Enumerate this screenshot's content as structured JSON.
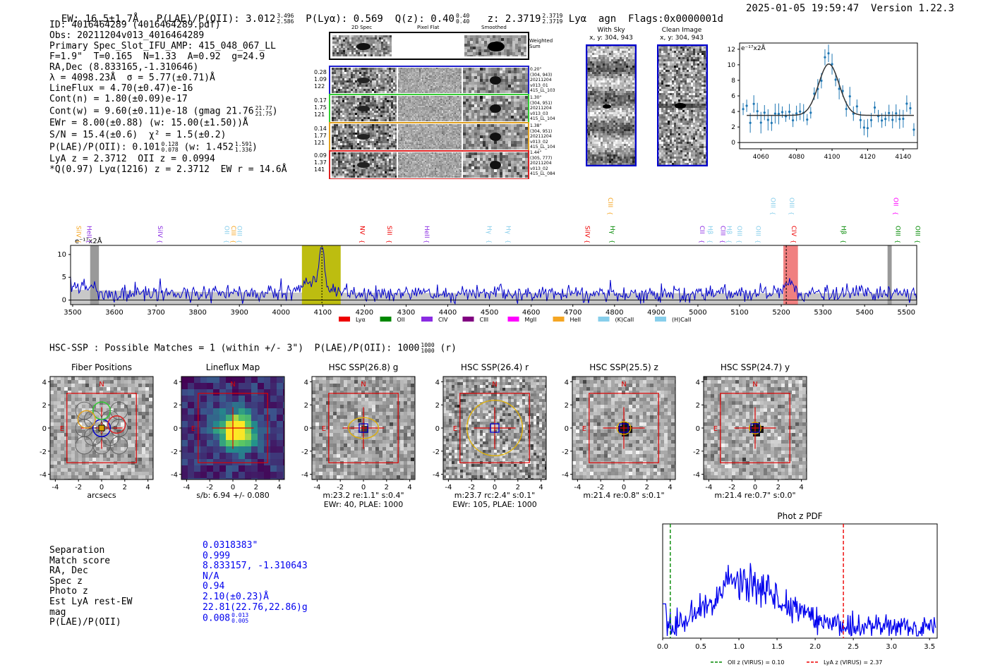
{
  "header": {
    "ew_label": "EW: 16.5±1.7Å",
    "plae_label": "P(LAE)/P(OII): 3.012",
    "plae_hi": "3.496",
    "plae_lo": "2.586",
    "plya_label": "P(Lyα): 0.569",
    "qz_label": "Q(z): 0.40",
    "qz_hi": "0.40",
    "qz_lo": "0.40",
    "z_label": "z: 2.3719",
    "z_hi": "2.3719",
    "z_lo": "2.3719",
    "tail": "Lyα  agn  Flags:0x0000001d",
    "datetime": "2025-01-05 19:59:47",
    "version": "Version 1.22.3"
  },
  "info": {
    "lines": [
      "ID: 4016464289 (4016464289.pdf)",
      "Obs: 20211204v013_4016464289",
      "Primary Spec_Slot_IFU_AMP: 415_048_067_LL",
      "F=1.9\"  T=0.165  N=1.33  A=0.92  g=24.9",
      "RA,Dec (8.833165,-1.310646)",
      "λ = 4098.23Å  σ = 5.77(±0.71)Å",
      "LineFlux = 4.70(±0.47)e-16",
      "Cont(n) = 1.80(±0.09)e-17"
    ],
    "contw": "Cont(w) = 9.60(±0.11)e-18 (gmag 21.76",
    "contw_hi": "21.77",
    "contw_lo": "21.75",
    "contw_close": ")",
    "ewr": "EWr = 8.00(±0.88) (w: 15.00(±1.50))Å",
    "sn": "S/N = 15.4(±0.6)  χ² = 1.5(±0.2)",
    "plae": "P(LAE)/P(OII): 0.101",
    "plae_hi": "0.128",
    "plae_lo": "0.078",
    "plae_w": "(w: 1.452",
    "plae_w_hi": "1.591",
    "plae_w_lo": "1.336",
    "plae_w_close": ")",
    "lyaz": "LyA z = 2.3712  OII z = 0.0994",
    "qline": "*Q(0.97) Lyα(1216) z = 2.3712  EW r = 14.6Å"
  },
  "cutouts": {
    "col_headers": [
      "2D Spec",
      "Pixel Flat",
      "Smoothed"
    ],
    "weighted_sum": "Weighted Sum",
    "rows": [
      {
        "left": [
          "0.28",
          "1.09",
          "122"
        ],
        "right": [
          "0.20\"",
          "(304, 943)",
          "20211204",
          "v013_01",
          "415_LL_103"
        ],
        "color": "#1f1fcc"
      },
      {
        "left": [
          "0.17",
          "1.75",
          "121"
        ],
        "right": [
          "1.30\"",
          "(304, 951)",
          "20211204",
          "v013_03",
          "415_LL_104"
        ],
        "color": "#33cc33"
      },
      {
        "left": [
          "0.14",
          "1.77",
          "121"
        ],
        "right": [
          "1.38\"",
          "(304, 951)",
          "20211204",
          "v013_02",
          "415_LL_104"
        ],
        "color": "#e0a020"
      },
      {
        "left": [
          "0.09",
          "1.37",
          "141"
        ],
        "right": [
          "1.44\"",
          "(305, 777)",
          "20211204",
          "v013_02",
          "415_LL_084"
        ],
        "color": "#dd2222"
      }
    ],
    "with_sky_title": "With Sky",
    "with_sky_sub": "x, y: 304, 943",
    "clean_title": "Clean Image",
    "clean_sub": "x, y: 304, 943"
  },
  "zoom_chart": {
    "type": "line",
    "ylabel": "e⁻¹⁷x2Å",
    "xlim": [
      4048,
      4148
    ],
    "ylim": [
      -0.8,
      12.8
    ],
    "xticks": [
      4060,
      4080,
      4100,
      4120,
      4140
    ],
    "yticks": [
      0,
      2,
      4,
      6,
      8,
      10,
      12
    ],
    "gauss": {
      "center": 4098.2,
      "sigma": 5.77,
      "amp": 6.6,
      "base": 3.5
    }
  },
  "full_chart": {
    "type": "line",
    "ylabel": "e⁻¹⁷x2Å",
    "xlim": [
      3495,
      5525
    ],
    "ylim": [
      -1,
      12
    ],
    "xticks": [
      3500,
      3600,
      3700,
      3800,
      3900,
      4000,
      4100,
      4200,
      4300,
      4400,
      4500,
      4600,
      4700,
      4800,
      4900,
      5000,
      5100,
      5200,
      5300,
      5400,
      5500
    ],
    "yticks": [
      0,
      5,
      10
    ],
    "line_marks": [
      {
        "label": "SiIV",
        "x": 3504,
        "color": "#f5a623"
      },
      {
        "label": "HeII",
        "x": 3530,
        "color": "#8a2be2"
      },
      {
        "label": "SiIV",
        "x": 3700,
        "color": "#8a2be2"
      },
      {
        "label": "OII",
        "x": 3860,
        "color": "#87ceeb"
      },
      {
        "label": "CIII",
        "x": 3876,
        "color": "#f5a623"
      },
      {
        "label": "OIII",
        "x": 3890,
        "color": "#87ceeb"
      },
      {
        "label": "NV",
        "x": 4185,
        "color": "#ee0000"
      },
      {
        "label": "SiII",
        "x": 4250,
        "color": "#ee0000"
      },
      {
        "label": "HeII",
        "x": 4340,
        "color": "#8a2be2"
      },
      {
        "label": "Hγ",
        "x": 4490,
        "color": "#87ceeb"
      },
      {
        "label": "Hγ",
        "x": 4535,
        "color": "#87ceeb"
      },
      {
        "label": "SiIV",
        "x": 4725,
        "color": "#ee0000"
      },
      {
        "label": "Hγ",
        "x": 4785,
        "color": "#008800"
      },
      {
        "label": "CII",
        "x": 5000,
        "color": "#8a2be2"
      },
      {
        "label": "Hβ",
        "x": 5020,
        "color": "#87ceeb"
      },
      {
        "label": "CIII",
        "x": 5050,
        "color": "#8a2be2"
      },
      {
        "label": "Hβ",
        "x": 5065,
        "color": "#87ceeb"
      },
      {
        "label": "OIII",
        "x": 5090,
        "color": "#87ceeb"
      },
      {
        "label": "OIII",
        "x": 5135,
        "color": "#87ceeb"
      },
      {
        "label": "CIV",
        "x": 5220,
        "color": "#ee0000"
      },
      {
        "label": "Hβ",
        "x": 5340,
        "color": "#008800"
      },
      {
        "label": "OIII",
        "x": 5470,
        "color": "#008800"
      },
      {
        "label": "OIII",
        "x": 5517,
        "color": "#008800"
      }
    ],
    "upper_marks": [
      {
        "label": "CIII",
        "x": 4780,
        "color": "#f5a623"
      },
      {
        "label": "OIII",
        "x": 5170,
        "color": "#87ceeb"
      },
      {
        "label": "OIII",
        "x": 5215,
        "color": "#87ceeb"
      },
      {
        "label": "OII",
        "x": 5465,
        "color": "#ff00ff"
      }
    ],
    "legend": [
      {
        "label": "Lyα",
        "color": "#ee0000"
      },
      {
        "label": "OII",
        "color": "#008800"
      },
      {
        "label": "CIV",
        "color": "#8a2be2"
      },
      {
        "label": "CIII",
        "color": "#800080"
      },
      {
        "label": "MgII",
        "color": "#ff00ff"
      },
      {
        "label": "HeII",
        "color": "#f5a623"
      },
      {
        "label": "(K)CaII",
        "color": "#87ceeb"
      },
      {
        "label": "(H)CaII",
        "color": "#87ceeb"
      }
    ],
    "olive_band": [
      4050,
      4143
    ],
    "red_band": [
      5205,
      5240
    ],
    "gray_band_1": [
      3542,
      3563
    ],
    "gray_band_2": [
      5455,
      5465
    ]
  },
  "hsc": {
    "title": "HSC-SSP : Possible Matches = 1 (within +/- 3\")  P(LAE)/P(OII): 1000",
    "plae_hi": "1000",
    "plae_lo": "1000",
    "suffix": "(r)",
    "panels": [
      {
        "title": "Fiber Positions",
        "caption1": "arcsecs",
        "caption2": ""
      },
      {
        "title": "Lineflux Map",
        "caption1": "s/b: 6.94 +/- 0.080",
        "caption2": ""
      },
      {
        "title": "HSC SSP(26.8) g",
        "caption1": "m:23.2  re:1.1\"  s:0.4\"",
        "caption2": "EWr: 40, PLAE: 1000"
      },
      {
        "title": "HSC SSP(26.4) r",
        "caption1": "m:23.7 rc:2.4\"  s:0.1\"",
        "caption2": "EWr: 105, PLAE: 1000"
      },
      {
        "title": "HSC SSP(25.5) z",
        "caption1": "m:21.4  re:0.8\"  s:0.1\"",
        "caption2": ""
      },
      {
        "title": "HSC SSP(24.7) y",
        "caption1": "m:21.4  re:0.7\"  s:0.0\"",
        "caption2": ""
      }
    ],
    "compass_n": "N",
    "compass_e": "E",
    "ticks": [
      "-4",
      "-2",
      "0",
      "2",
      "4"
    ]
  },
  "match_table": {
    "labels": [
      "Separation",
      "Match score",
      "RA, Dec",
      "Spec z",
      "Photo z",
      "Est LyA rest-EW",
      "mag",
      "P(LAE)/P(OII)"
    ],
    "values": [
      "0.0318383\"",
      "0.999",
      "8.833157, -1.310643",
      "N/A",
      "0.94",
      "2.10(±0.23)Å",
      "22.81(22.76,22.86)g",
      "0.008"
    ],
    "last_hi": "0.013",
    "last_lo": "0.005"
  },
  "photz_chart": {
    "type": "line",
    "title": "Phot z PDF",
    "xlim": [
      0,
      3.6
    ],
    "ylim": [
      0,
      1
    ],
    "xticks": [
      "0.0",
      "0.5",
      "1.0",
      "1.5",
      "2.0",
      "2.5",
      "3.0",
      "3.5"
    ],
    "oii_z": 0.1,
    "lya_z": 2.37,
    "legend": [
      "OII z (VIRUS) = 0.10",
      "LyA z (VIRUS) = 2.37"
    ]
  }
}
